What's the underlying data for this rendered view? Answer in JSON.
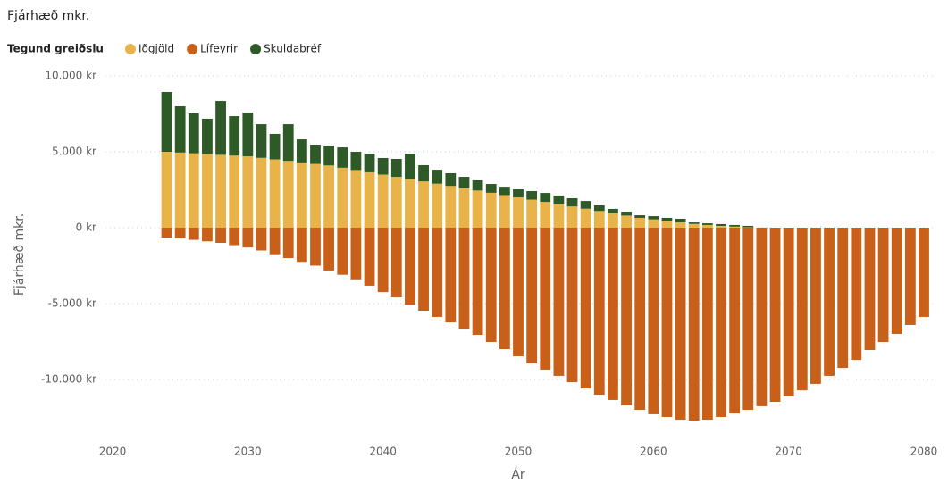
{
  "chart_data": {
    "type": "bar",
    "stacked": true,
    "title": "Fjárhæð mkr.",
    "legend_title": "Tegund greiðslu",
    "legend": "top-left",
    "xlabel": "Ár",
    "ylabel": "Fjárhæð mkr.",
    "x": [
      2024,
      2025,
      2026,
      2027,
      2028,
      2029,
      2030,
      2031,
      2032,
      2033,
      2034,
      2035,
      2036,
      2037,
      2038,
      2039,
      2040,
      2041,
      2042,
      2043,
      2044,
      2045,
      2046,
      2047,
      2048,
      2049,
      2050,
      2051,
      2052,
      2053,
      2054,
      2055,
      2056,
      2057,
      2058,
      2059,
      2060,
      2061,
      2062,
      2063,
      2064,
      2065,
      2066,
      2067,
      2068,
      2069,
      2070,
      2071,
      2072,
      2073,
      2074,
      2075,
      2076,
      2077,
      2078,
      2079,
      2080
    ],
    "series": [
      {
        "name": "Iðgjöld",
        "color": "#e8b44a",
        "values": [
          5000,
          4950,
          4900,
          4850,
          4800,
          4750,
          4700,
          4600,
          4500,
          4400,
          4300,
          4200,
          4100,
          3950,
          3800,
          3650,
          3500,
          3350,
          3200,
          3050,
          2900,
          2750,
          2600,
          2450,
          2300,
          2150,
          2000,
          1850,
          1700,
          1550,
          1400,
          1250,
          1100,
          950,
          800,
          650,
          550,
          450,
          350,
          250,
          180,
          120,
          70,
          30,
          10,
          0,
          0,
          0,
          0,
          0,
          0,
          0,
          0,
          0,
          0,
          0,
          0
        ]
      },
      {
        "name": "Lífeyrir",
        "color": "#c8601a",
        "values": [
          -650,
          -700,
          -800,
          -900,
          -1000,
          -1150,
          -1300,
          -1500,
          -1750,
          -2000,
          -2250,
          -2500,
          -2820,
          -3100,
          -3400,
          -3820,
          -4240,
          -4590,
          -5060,
          -5470,
          -5880,
          -6240,
          -6650,
          -7060,
          -7530,
          -8000,
          -8470,
          -8940,
          -9350,
          -9760,
          -10180,
          -10590,
          -11000,
          -11350,
          -11710,
          -12000,
          -12290,
          -12470,
          -12650,
          -12710,
          -12650,
          -12470,
          -12240,
          -12000,
          -11760,
          -11470,
          -11120,
          -10710,
          -10290,
          -9760,
          -9240,
          -8710,
          -8060,
          -7530,
          -7000,
          -6410,
          -5880
        ]
      },
      {
        "name": "Skuldabréf",
        "color": "#2d5a27",
        "values": [
          3940,
          3050,
          2630,
          2330,
          3550,
          2600,
          2890,
          2220,
          1680,
          2420,
          1520,
          1270,
          1310,
          1340,
          1200,
          1230,
          1090,
          1180,
          1680,
          1070,
          920,
          840,
          750,
          670,
          580,
          550,
          530,
          560,
          590,
          570,
          540,
          510,
          370,
          290,
          260,
          170,
          210,
          200,
          240,
          100,
          110,
          120,
          110,
          90,
          0,
          0,
          0,
          0,
          0,
          0,
          0,
          0,
          0,
          0,
          0,
          0,
          0
        ]
      }
    ],
    "xlim": [
      2020,
      2080
    ],
    "xticks": [
      2020,
      2030,
      2040,
      2050,
      2060,
      2070,
      2080
    ],
    "ylim": [
      -13500,
      10500
    ],
    "yticks": [
      {
        "value": 10000,
        "label": "10.000 kr"
      },
      {
        "value": 5000,
        "label": "5.000 kr"
      },
      {
        "value": 0,
        "label": "0 kr"
      },
      {
        "value": -5000,
        "label": "-5.000 kr"
      },
      {
        "value": -10000,
        "label": "-10.000 kr"
      }
    ],
    "grid": true
  }
}
